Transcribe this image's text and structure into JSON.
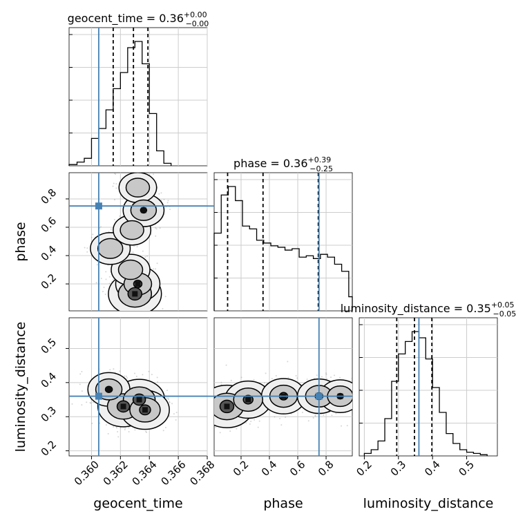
{
  "chart_data": {
    "type": "corner",
    "parameters": [
      "geocent_time",
      "phase",
      "luminosity_distance"
    ],
    "ranges": {
      "geocent_time": [
        0.35845,
        0.368
      ],
      "phase": [
        0.01,
        0.985
      ],
      "luminosity_distance": [
        0.185,
        0.59
      ]
    },
    "truths": {
      "geocent_time": 0.3605,
      "phase": 0.75,
      "luminosity_distance": 0.36
    },
    "titles": [
      {
        "param": "geocent_time",
        "text": "geocent_time = 0.36",
        "sup": "+0.00",
        "sub": "−0.00"
      },
      {
        "param": "phase",
        "text": "phase = 0.36",
        "sup": "+0.39",
        "sub": "−0.25"
      },
      {
        "param": "luminosity_distance",
        "text": "luminosity_distance = 0.35",
        "sup": "+0.05",
        "sub": "−0.05"
      }
    ],
    "quantiles": {
      "geocent_time": [
        0.3615,
        0.3629,
        0.3639
      ],
      "phase": [
        0.105,
        0.355,
        0.745
      ],
      "luminosity_distance": [
        0.295,
        0.347,
        0.398
      ]
    },
    "axis_labels": {
      "geocent_time": "geocent_time",
      "phase": "phase",
      "luminosity_distance": "luminosity_distance"
    },
    "ticks": {
      "geocent_time": [
        "0.360",
        "0.362",
        "0.364",
        "0.366",
        "0.368"
      ],
      "phase": [
        "0.2",
        "0.4",
        "0.6",
        "0.8"
      ],
      "luminosity_distance": [
        "0.2",
        "0.3",
        "0.4",
        "0.5"
      ]
    },
    "tick_values": {
      "geocent_time": [
        0.36,
        0.362,
        0.364,
        0.366,
        0.368
      ],
      "phase": [
        0.2,
        0.4,
        0.6,
        0.8
      ],
      "luminosity_distance": [
        0.2,
        0.3,
        0.4,
        0.5
      ]
    },
    "histograms": {
      "geocent_time": {
        "edges": [
          0.35845,
          0.359,
          0.3595,
          0.36,
          0.3605,
          0.361,
          0.3615,
          0.362,
          0.3625,
          0.363,
          0.3635,
          0.364,
          0.3645,
          0.365,
          0.3655
        ],
        "counts": [
          0.01,
          0.03,
          0.06,
          0.22,
          0.3,
          0.45,
          0.62,
          0.75,
          0.95,
          1.0,
          0.82,
          0.42,
          0.12,
          0.02
        ]
      },
      "phase": {
        "edges": [
          0.01,
          0.06,
          0.11,
          0.16,
          0.21,
          0.26,
          0.31,
          0.36,
          0.41,
          0.46,
          0.51,
          0.56,
          0.61,
          0.66,
          0.71,
          0.76,
          0.81,
          0.86,
          0.91,
          0.96,
          0.985
        ],
        "counts": [
          0.55,
          0.82,
          0.88,
          0.78,
          0.6,
          0.58,
          0.5,
          0.48,
          0.46,
          0.45,
          0.43,
          0.44,
          0.38,
          0.39,
          0.37,
          0.4,
          0.38,
          0.33,
          0.28,
          0.1
        ]
      },
      "luminosity_distance": {
        "edges": [
          0.2,
          0.22,
          0.24,
          0.26,
          0.28,
          0.3,
          0.32,
          0.34,
          0.36,
          0.38,
          0.4,
          0.42,
          0.44,
          0.46,
          0.48,
          0.5,
          0.52,
          0.54,
          0.56
        ],
        "counts": [
          0.02,
          0.05,
          0.12,
          0.3,
          0.6,
          0.82,
          0.92,
          1.0,
          0.95,
          0.78,
          0.55,
          0.35,
          0.18,
          0.1,
          0.05,
          0.03,
          0.02,
          0.01
        ]
      }
    },
    "pairs": [
      {
        "x": "geocent_time",
        "y": "phase",
        "density_centers": [
          [
            0.363,
            0.13,
            1.0
          ],
          [
            0.3632,
            0.2,
            0.6
          ],
          [
            0.3627,
            0.3,
            0.35
          ],
          [
            0.3613,
            0.45,
            0.4
          ],
          [
            0.3628,
            0.58,
            0.3
          ],
          [
            0.3636,
            0.72,
            0.45
          ],
          [
            0.3632,
            0.88,
            0.3
          ]
        ],
        "contour_levels": [
          0.1,
          0.3,
          0.6
        ]
      },
      {
        "x": "geocent_time",
        "y": "luminosity_distance",
        "density_centers": [
          [
            0.3622,
            0.33,
            0.9
          ],
          [
            0.3633,
            0.35,
            0.9
          ],
          [
            0.3637,
            0.32,
            0.8
          ],
          [
            0.3612,
            0.38,
            0.5
          ]
        ],
        "contour_levels": [
          0.1,
          0.3,
          0.6
        ]
      },
      {
        "x": "phase",
        "y": "luminosity_distance",
        "density_centers": [
          [
            0.1,
            0.33,
            1.0
          ],
          [
            0.25,
            0.35,
            0.7
          ],
          [
            0.5,
            0.36,
            0.6
          ],
          [
            0.75,
            0.36,
            0.55
          ],
          [
            0.9,
            0.36,
            0.45
          ]
        ],
        "contour_levels": [
          0.1,
          0.3,
          0.6
        ]
      }
    ],
    "colors": {
      "truth": "#4682b4",
      "line": "#000000",
      "grid": "#cccccc"
    }
  }
}
